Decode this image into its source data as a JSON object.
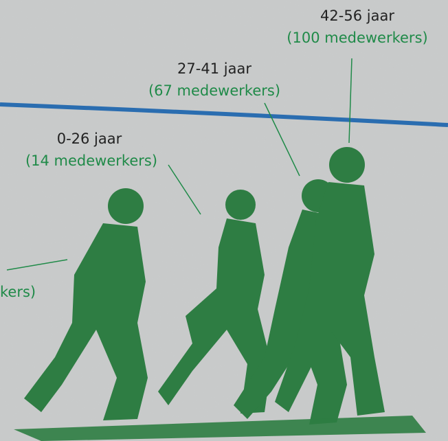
{
  "labels": [
    {
      "age": "0-26 jaar",
      "count": "(14 medewerkers)"
    },
    {
      "age": "27-41 jaar",
      "count": "(67 medewerkers)"
    },
    {
      "age": "42-56 jaar",
      "count": "(100 medewerkers)"
    }
  ],
  "partial_label": "kers)"
}
